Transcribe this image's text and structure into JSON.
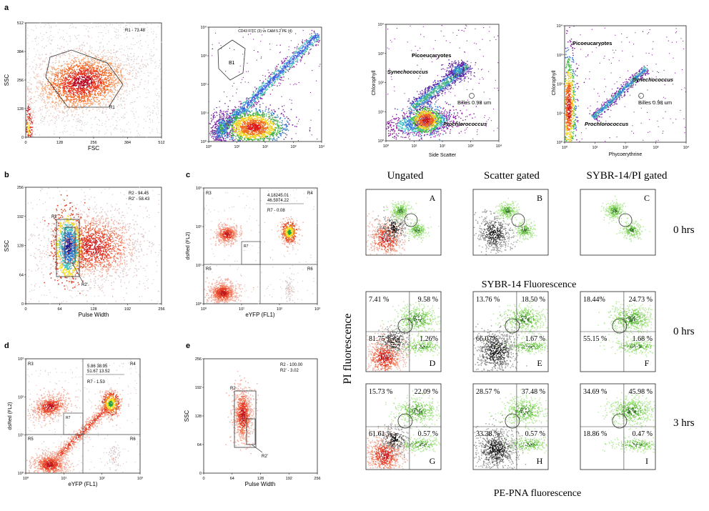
{
  "panel_letters": {
    "a": "a",
    "b": "b",
    "c": "c",
    "d": "d",
    "e": "e"
  },
  "chart_data": [
    {
      "id": "a1",
      "type": "scatter",
      "xlabel": "FSC",
      "ylabel": "SSC",
      "xticks": [
        "0",
        "128",
        "256",
        "384",
        "512"
      ],
      "yticks": [
        "0",
        "128",
        "256",
        "384",
        "512"
      ],
      "xlim": [
        0,
        512
      ],
      "ylim": [
        0,
        512
      ],
      "gate_label": "R1",
      "annotation": "R1 - 73.48"
    },
    {
      "id": "a2",
      "type": "scatter",
      "log_axes": true,
      "title": "CD43 FITC (3) vs CAM 5.2 PE (4)",
      "xticks": [
        "10⁰",
        "10¹",
        "10²",
        "10³",
        "10⁴"
      ],
      "yticks": [
        "10⁰",
        "10¹",
        "10²",
        "10³",
        "10⁴"
      ],
      "gate_label": "B1"
    },
    {
      "id": "a3",
      "type": "scatter",
      "log_axes": true,
      "xlabel": "Side Scatter",
      "ylabel": "Chlorophyll",
      "xticks": [
        "10⁰",
        "10¹",
        "10²",
        "10³",
        "10⁴"
      ],
      "yticks": [
        "10⁰",
        "10¹",
        "10²",
        "10³",
        "10⁴"
      ],
      "labels": [
        "Picoeucaryotes",
        "Synechococcus",
        "Prochlorococcus",
        "Billes 0.98 um"
      ]
    },
    {
      "id": "a4",
      "type": "scatter",
      "log_axes": true,
      "xlabel": "Phycoerythrine",
      "ylabel": "Chlorophyll",
      "xticks": [
        "10⁰",
        "10¹",
        "10²",
        "10³",
        "10⁴"
      ],
      "yticks": [
        "10⁰",
        "10¹",
        "10²",
        "10³",
        "10⁴"
      ],
      "labels": [
        "Picoeucaryotes",
        "Synechococcus",
        "Prochlorococcus",
        "Billes 0.98 um"
      ]
    },
    {
      "id": "b",
      "type": "scatter",
      "xlabel": "Pulse Width",
      "ylabel": "SSC",
      "xticks": [
        "0",
        "64",
        "128",
        "192",
        "256"
      ],
      "yticks": [
        "0",
        "64",
        "128",
        "192",
        "256"
      ],
      "xlim": [
        0,
        256
      ],
      "ylim": [
        0,
        256
      ],
      "gate_labels": [
        "R2",
        "R2'"
      ],
      "annotation": [
        "R2 - 94.45",
        "R2' - 58.43"
      ]
    },
    {
      "id": "c",
      "type": "scatter",
      "log_axes": true,
      "xlabel": "eYFP (FL1)",
      "ylabel": "dsRed (FL2)",
      "xticks": [
        "10⁰",
        "10¹",
        "10²",
        "10³"
      ],
      "yticks": [
        "10⁰",
        "10¹",
        "10²",
        "10³"
      ],
      "quadrants": [
        "R3",
        "R4",
        "R5",
        "R6"
      ],
      "gate_label": "R7",
      "annotation": [
        "4.18245.01",
        "46.5974.22",
        "R7 - 0.08"
      ]
    },
    {
      "id": "d",
      "type": "scatter",
      "log_axes": true,
      "xlabel": "eYFP (FL1)",
      "ylabel": "dsRed (FL2)",
      "xticks": [
        "10⁰",
        "10¹",
        "10²",
        "10³"
      ],
      "yticks": [
        "10⁰",
        "10¹",
        "10²",
        "10³"
      ],
      "quadrants": [
        "R3",
        "R4",
        "R5",
        "R6"
      ],
      "gate_label": "R7",
      "annotation": [
        "5.86 38.95",
        "51.67 13.52",
        "R7 - 1.53"
      ]
    },
    {
      "id": "e",
      "type": "scatter",
      "xlabel": "Pulse Width",
      "ylabel": "SSC",
      "xticks": [
        "0",
        "64",
        "128",
        "192",
        "256"
      ],
      "yticks": [
        "0",
        "64",
        "128",
        "192",
        "256"
      ],
      "xlim": [
        0,
        256
      ],
      "ylim": [
        0,
        256
      ],
      "gate_labels": [
        "R2",
        "R2'"
      ],
      "annotation": [
        "R2 - 100.00",
        "R2' - 3.02"
      ]
    },
    {
      "id": "grid",
      "type": "scatter",
      "column_headers": [
        "Ungated",
        "Scatter gated",
        "SYBR-14/PI gated"
      ],
      "row_labels": [
        "0 hrs",
        "0 hrs",
        "3 hrs"
      ],
      "row1_xlabel": "SYBR-14 Fluorescence",
      "y_axis_title": "PI fluorescence",
      "x_axis_title": "PE-PNA fluorescence",
      "panels": [
        {
          "letter": "A"
        },
        {
          "letter": "B"
        },
        {
          "letter": "C"
        },
        {
          "letter": "D",
          "quadrants": [
            "7.41 %",
            "9.58 %",
            "81.75 %",
            "1.26%"
          ]
        },
        {
          "letter": "E",
          "quadrants": [
            "13.76 %",
            "18.50 %",
            "66.07%",
            "1.67 %"
          ]
        },
        {
          "letter": "F",
          "quadrants": [
            "18.44%",
            "24.73 %",
            "55.15 %",
            "1.68 %"
          ]
        },
        {
          "letter": "G",
          "quadrants": [
            "15.73 %",
            "22.09 %",
            "61.61 %",
            "0.57 %"
          ]
        },
        {
          "letter": "H",
          "quadrants": [
            "28.57 %",
            "37.48 %",
            "33.38 %",
            "0.57 %"
          ]
        },
        {
          "letter": "I",
          "quadrants": [
            "34.69 %",
            "45.98 %",
            "18.86 %",
            "0.47 %"
          ]
        }
      ]
    }
  ]
}
